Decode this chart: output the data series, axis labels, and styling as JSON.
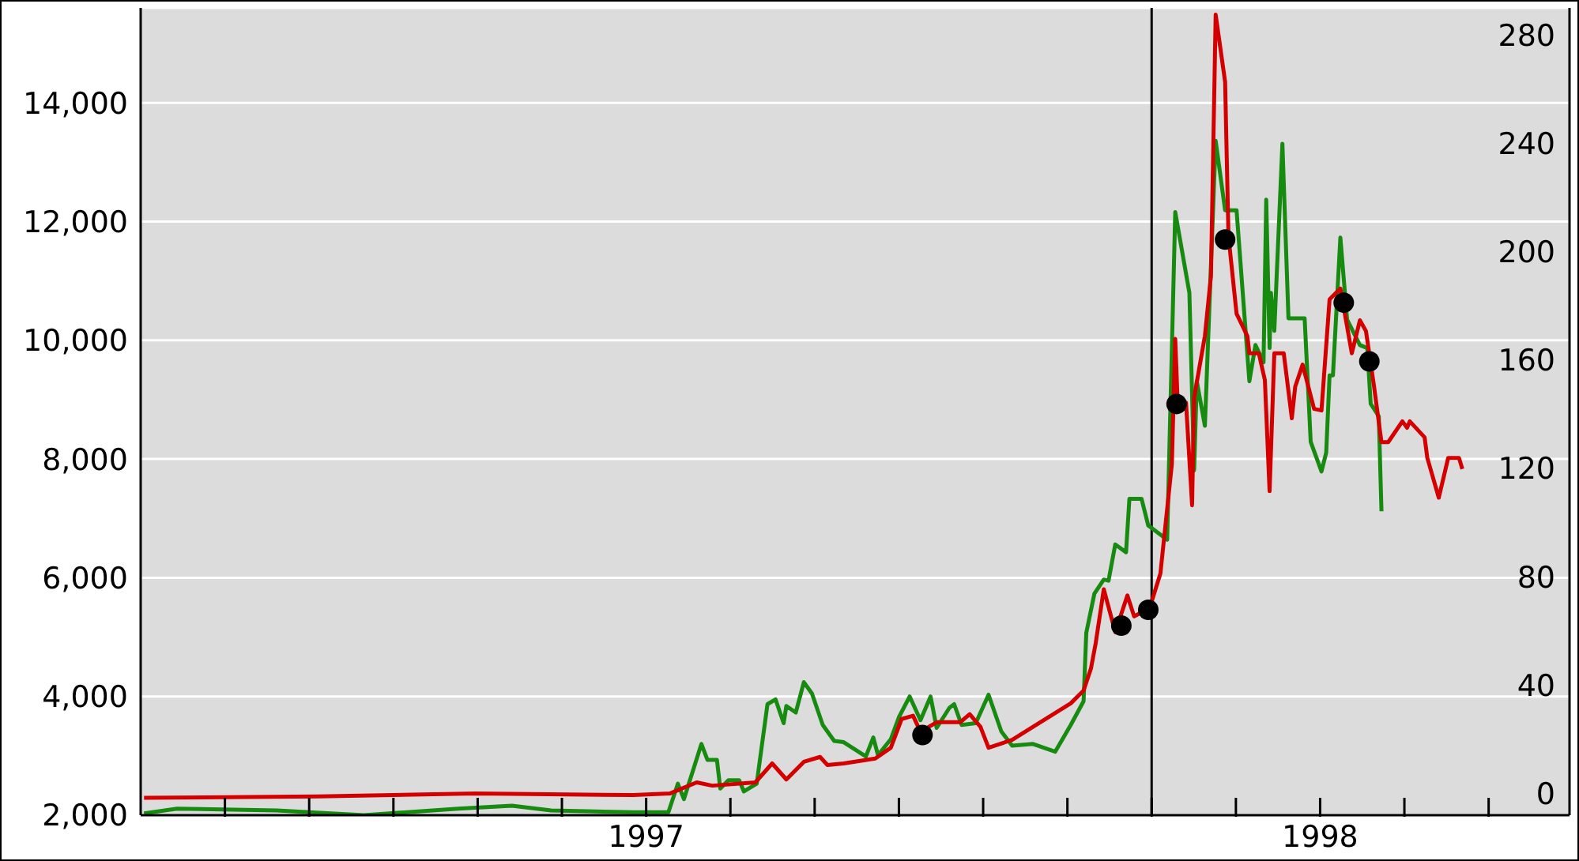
{
  "chart_data": {
    "type": "line",
    "xlim": [
      1996.25,
      1998.37
    ],
    "xticks": [
      {
        "value": 1996.375,
        "label": null
      },
      {
        "value": 1996.5,
        "label": null
      },
      {
        "value": 1996.625,
        "label": null
      },
      {
        "value": 1996.75,
        "label": null
      },
      {
        "value": 1996.875,
        "label": null
      },
      1997,
      {
        "value": 1997.125,
        "label": null
      },
      {
        "value": 1997.25,
        "label": null
      },
      {
        "value": 1997.375,
        "label": null
      },
      {
        "value": 1997.5,
        "label": null
      },
      {
        "value": 1997.625,
        "label": null
      },
      {
        "value": 1997.75,
        "label": null
      },
      {
        "value": 1997.875,
        "label": null
      },
      1998,
      {
        "value": 1998.125,
        "label": null
      },
      {
        "value": 1998.25,
        "label": null
      }
    ],
    "ylim": [
      2000,
      15600
    ],
    "yticks": [
      {
        "value": 2000,
        "label": "2,000"
      },
      {
        "value": 4000,
        "label": "4,000"
      },
      {
        "value": 6000,
        "label": "6,000"
      },
      {
        "value": 8000,
        "label": "8,000"
      },
      {
        "value": 10000,
        "label": "10,000"
      },
      {
        "value": 12000,
        "label": "12,000"
      },
      {
        "value": 14000,
        "label": "14,000"
      }
    ],
    "y2lim": [
      -8,
      290
    ],
    "y2ticks": [
      0,
      40,
      80,
      120,
      160,
      200,
      240,
      280
    ],
    "grid": "y",
    "line_style": "solid",
    "ref_lines": [
      {
        "axis": "x",
        "value": 1997.75,
        "color": "#000000"
      }
    ],
    "series": [
      {
        "axis": "y",
        "color": "#178a10",
        "x": [
          1996.255,
          1996.304,
          1996.452,
          1996.581,
          1996.721,
          1996.801,
          1996.859,
          1996.981,
          1997.033,
          1997.047,
          1997.056,
          1997.082,
          1997.091,
          1997.105,
          1997.11,
          1997.122,
          1997.138,
          1997.145,
          1997.164,
          1997.18,
          1997.192,
          1997.204,
          1997.208,
          1997.222,
          1997.234,
          1997.246,
          1997.262,
          1997.279,
          1997.293,
          1997.326,
          1997.337,
          1997.344,
          1997.363,
          1997.375,
          1997.391,
          1997.407,
          1997.422,
          1997.431,
          1997.45,
          1997.457,
          1997.468,
          1997.489,
          1997.508,
          1997.527,
          1997.543,
          1997.574,
          1997.607,
          1997.63,
          1997.649,
          1997.653,
          1997.665,
          1997.679,
          1997.686,
          1997.696,
          1997.712,
          1997.717,
          1997.735,
          1997.745,
          1997.773,
          1997.785,
          1997.806,
          1997.813,
          1997.817,
          1997.829,
          1997.845,
          1997.859,
          1997.876,
          1997.895,
          1997.904,
          1997.916,
          1997.92,
          1997.925,
          1997.927,
          1997.932,
          1997.944,
          1997.953,
          1997.977,
          1997.986,
          1998.002,
          1998.009,
          1998.014,
          1998.019,
          1998.03,
          1998.04,
          1998.059,
          1998.07,
          1998.075,
          1998.087,
          1998.091
        ],
        "values": [
          2030,
          2110,
          2080,
          2000,
          2110,
          2160,
          2080,
          2050,
          2050,
          2530,
          2270,
          3200,
          2930,
          2930,
          2450,
          2590,
          2590,
          2400,
          2530,
          3870,
          3950,
          3550,
          3840,
          3730,
          4240,
          4050,
          3520,
          3250,
          3230,
          2990,
          3310,
          3010,
          3280,
          3650,
          4000,
          3600,
          4000,
          3470,
          3810,
          3870,
          3520,
          3550,
          4030,
          3410,
          3170,
          3200,
          3070,
          3520,
          3920,
          5070,
          5730,
          5970,
          5950,
          6560,
          6430,
          7330,
          7330,
          6880,
          6640,
          12160,
          10800,
          7810,
          9310,
          8560,
          13360,
          12190,
          12190,
          9310,
          9920,
          9630,
          12370,
          9870,
          10800,
          10160,
          13310,
          10370,
          10370,
          8290,
          7790,
          8110,
          9410,
          9410,
          11730,
          10350,
          9920,
          9870,
          8930,
          8720,
          7120
        ]
      },
      {
        "axis": "y2",
        "color": "#d40000",
        "x": [
          1996.255,
          1996.513,
          1996.747,
          1996.981,
          1997.035,
          1997.075,
          1997.098,
          1997.162,
          1997.187,
          1997.208,
          1997.234,
          1997.258,
          1997.269,
          1997.293,
          1997.34,
          1997.363,
          1997.379,
          1997.396,
          1997.407,
          1997.431,
          1997.466,
          1997.48,
          1997.496,
          1997.508,
          1997.543,
          1997.574,
          1997.63,
          1997.649,
          1997.66,
          1997.667,
          1997.679,
          1997.696,
          1997.714,
          1997.724,
          1997.747,
          1997.763,
          1997.78,
          1997.785,
          1997.789,
          1997.801,
          1997.81,
          1997.813,
          1997.829,
          1997.838,
          1997.845,
          1997.859,
          1997.864,
          1997.876,
          1997.892,
          1997.895,
          1997.909,
          1997.918,
          1997.925,
          1997.932,
          1997.946,
          1997.958,
          1997.963,
          1997.974,
          1997.991,
          1998.002,
          1998.014,
          1998.03,
          1998.047,
          1998.059,
          1998.068,
          1998.08,
          1998.091,
          1998.101,
          1998.122,
          1998.129,
          1998.133,
          1998.155,
          1998.159,
          1998.176,
          1998.19,
          1998.206,
          1998.211
        ],
        "values": [
          -1.6,
          -1.1,
          0,
          -0.6,
          0,
          4.1,
          2.9,
          4.1,
          11.1,
          5.2,
          11.7,
          13.5,
          10.5,
          11.1,
          12.9,
          16.9,
          27.5,
          28.7,
          22.8,
          26.3,
          26.3,
          29.3,
          24.6,
          16.9,
          19.8,
          24.6,
          33.3,
          38,
          46.2,
          55.5,
          75.4,
          59.6,
          73.1,
          65.4,
          68.4,
          81.2,
          121.6,
          167.8,
          142,
          144.3,
          106.4,
          146.1,
          168.9,
          191.1,
          287.5,
          262.7,
          205.7,
          177.1,
          168.9,
          162.5,
          162.5,
          152.6,
          111.6,
          162.5,
          162.5,
          138.5,
          150.2,
          158.3,
          142,
          141.4,
          182.4,
          186.4,
          162.5,
          174.7,
          170.7,
          150.2,
          129.7,
          129.7,
          137.4,
          135,
          137.4,
          131.5,
          123.9,
          109.2,
          123.9,
          123.9,
          119.8
        ]
      },
      {
        "type": "scatter",
        "axis": "y2",
        "color": "#000000",
        "marker": "circle",
        "x": [
          1997.41,
          1997.705,
          1997.745,
          1997.787,
          1997.859,
          1998.035,
          1998.073
        ],
        "values": [
          21.6,
          62,
          67.8,
          143.8,
          204.5,
          181.2,
          159.5
        ]
      }
    ]
  }
}
